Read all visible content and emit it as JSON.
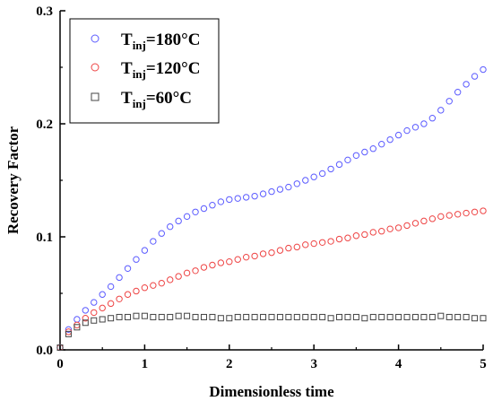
{
  "chart_data": {
    "type": "scatter",
    "xlabel": "Dimensionless time",
    "ylabel": "Recovery Factor",
    "xlim": [
      0,
      5
    ],
    "ylim": [
      0,
      0.3
    ],
    "x_ticks": [
      "0",
      "1",
      "2",
      "3",
      "4",
      "5"
    ],
    "y_ticks": [
      "0.0",
      "0.1",
      "0.2",
      "0.3"
    ],
    "grid": false,
    "legend_position": "top-left",
    "series": [
      {
        "name": "T",
        "subscript": "inj",
        "suffix": "=180°C",
        "marker": "circle",
        "color": "#5b5bff",
        "x": [
          0,
          0.1,
          0.2,
          0.3,
          0.4,
          0.5,
          0.6,
          0.7,
          0.8,
          0.9,
          1.0,
          1.1,
          1.2,
          1.3,
          1.4,
          1.5,
          1.6,
          1.7,
          1.8,
          1.9,
          2.0,
          2.1,
          2.2,
          2.3,
          2.4,
          2.5,
          2.6,
          2.7,
          2.8,
          2.9,
          3.0,
          3.1,
          3.2,
          3.3,
          3.4,
          3.5,
          3.6,
          3.7,
          3.8,
          3.9,
          4.0,
          4.1,
          4.2,
          4.3,
          4.4,
          4.5,
          4.6,
          4.7,
          4.8,
          4.9,
          5.0
        ],
        "y": [
          0.002,
          0.018,
          0.027,
          0.035,
          0.042,
          0.049,
          0.056,
          0.064,
          0.072,
          0.08,
          0.088,
          0.096,
          0.103,
          0.109,
          0.114,
          0.118,
          0.122,
          0.125,
          0.128,
          0.131,
          0.133,
          0.134,
          0.135,
          0.136,
          0.138,
          0.14,
          0.142,
          0.144,
          0.147,
          0.15,
          0.153,
          0.156,
          0.16,
          0.164,
          0.168,
          0.172,
          0.175,
          0.178,
          0.182,
          0.186,
          0.19,
          0.194,
          0.197,
          0.2,
          0.205,
          0.212,
          0.22,
          0.228,
          0.235,
          0.242,
          0.248
        ]
      },
      {
        "name": "T",
        "subscript": "inj",
        "suffix": "=120°C",
        "marker": "circle",
        "color": "#ee4444",
        "x": [
          0,
          0.1,
          0.2,
          0.3,
          0.4,
          0.5,
          0.6,
          0.7,
          0.8,
          0.9,
          1.0,
          1.1,
          1.2,
          1.3,
          1.4,
          1.5,
          1.6,
          1.7,
          1.8,
          1.9,
          2.0,
          2.1,
          2.2,
          2.3,
          2.4,
          2.5,
          2.6,
          2.7,
          2.8,
          2.9,
          3.0,
          3.1,
          3.2,
          3.3,
          3.4,
          3.5,
          3.6,
          3.7,
          3.8,
          3.9,
          4.0,
          4.1,
          4.2,
          4.3,
          4.4,
          4.5,
          4.6,
          4.7,
          4.8,
          4.9,
          5.0
        ],
        "y": [
          0.002,
          0.016,
          0.022,
          0.028,
          0.033,
          0.037,
          0.041,
          0.045,
          0.049,
          0.052,
          0.055,
          0.057,
          0.059,
          0.062,
          0.065,
          0.068,
          0.07,
          0.073,
          0.075,
          0.077,
          0.078,
          0.08,
          0.082,
          0.083,
          0.085,
          0.086,
          0.088,
          0.09,
          0.091,
          0.093,
          0.094,
          0.095,
          0.096,
          0.098,
          0.099,
          0.101,
          0.102,
          0.104,
          0.105,
          0.107,
          0.108,
          0.11,
          0.112,
          0.114,
          0.116,
          0.118,
          0.119,
          0.12,
          0.121,
          0.122,
          0.123
        ]
      },
      {
        "name": "T",
        "subscript": "inj",
        "suffix": "=60°C",
        "marker": "square",
        "color": "#444444",
        "x": [
          0,
          0.1,
          0.2,
          0.3,
          0.4,
          0.5,
          0.6,
          0.7,
          0.8,
          0.9,
          1.0,
          1.1,
          1.2,
          1.3,
          1.4,
          1.5,
          1.6,
          1.7,
          1.8,
          1.9,
          2.0,
          2.1,
          2.2,
          2.3,
          2.4,
          2.5,
          2.6,
          2.7,
          2.8,
          2.9,
          3.0,
          3.1,
          3.2,
          3.3,
          3.4,
          3.5,
          3.6,
          3.7,
          3.8,
          3.9,
          4.0,
          4.1,
          4.2,
          4.3,
          4.4,
          4.5,
          4.6,
          4.7,
          4.8,
          4.9,
          5.0
        ],
        "y": [
          0.002,
          0.014,
          0.02,
          0.024,
          0.026,
          0.027,
          0.028,
          0.029,
          0.029,
          0.03,
          0.03,
          0.029,
          0.029,
          0.029,
          0.03,
          0.03,
          0.029,
          0.029,
          0.029,
          0.028,
          0.028,
          0.029,
          0.029,
          0.029,
          0.029,
          0.029,
          0.029,
          0.029,
          0.029,
          0.029,
          0.029,
          0.029,
          0.028,
          0.029,
          0.029,
          0.029,
          0.028,
          0.029,
          0.029,
          0.029,
          0.029,
          0.029,
          0.029,
          0.029,
          0.029,
          0.03,
          0.029,
          0.029,
          0.029,
          0.028,
          0.028
        ]
      }
    ]
  }
}
